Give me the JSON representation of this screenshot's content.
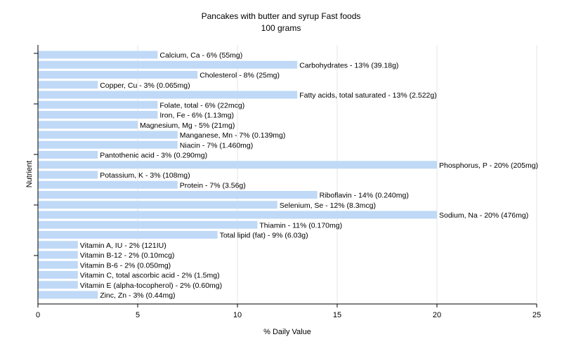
{
  "chart_data": {
    "type": "bar",
    "orientation": "horizontal",
    "title": "Pancakes with butter and syrup Fast foods",
    "subtitle": "100 grams",
    "xlabel": "% Daily Value",
    "ylabel": "Nutrient",
    "xlim": [
      0,
      25
    ],
    "xticks": [
      "0",
      "5",
      "10",
      "15",
      "20",
      "25"
    ],
    "grid": true,
    "bar_color": "#bfd9f7",
    "categories": [
      "Calcium, Ca",
      "Carbohydrates",
      "Cholesterol",
      "Copper, Cu",
      "Fatty acids, total saturated",
      "Folate, total",
      "Iron, Fe",
      "Magnesium, Mg",
      "Manganese, Mn",
      "Niacin",
      "Pantothenic acid",
      "Phosphorus, P",
      "Potassium, K",
      "Protein",
      "Riboflavin",
      "Selenium, Se",
      "Sodium, Na",
      "Thiamin",
      "Total lipid (fat)",
      "Vitamin A, IU",
      "Vitamin B-12",
      "Vitamin B-6",
      "Vitamin C, total ascorbic acid",
      "Vitamin E (alpha-tocopherol)",
      "Zinc, Zn"
    ],
    "values": [
      6,
      13,
      8,
      3,
      13,
      6,
      6,
      5,
      7,
      7,
      3,
      20,
      3,
      7,
      14,
      12,
      20,
      11,
      9,
      2,
      2,
      2,
      2,
      2,
      3
    ],
    "labels": [
      "Calcium, Ca - 6% (55mg)",
      "Carbohydrates - 13% (39.18g)",
      "Cholesterol - 8% (25mg)",
      "Copper, Cu - 3% (0.065mg)",
      "Fatty acids, total saturated - 13% (2.522g)",
      "Folate, total - 6% (22mcg)",
      "Iron, Fe - 6% (1.13mg)",
      "Magnesium, Mg - 5% (21mg)",
      "Manganese, Mn - 7% (0.139mg)",
      "Niacin - 7% (1.460mg)",
      "Pantothenic acid - 3% (0.290mg)",
      "Phosphorus, P - 20% (205mg)",
      "Potassium, K - 3% (108mg)",
      "Protein - 7% (3.56g)",
      "Riboflavin - 14% (0.240mg)",
      "Selenium, Se - 12% (8.3mcg)",
      "Sodium, Na - 20% (476mg)",
      "Thiamin - 11% (0.170mg)",
      "Total lipid (fat) - 9% (6.03g)",
      "Vitamin A, IU - 2% (121IU)",
      "Vitamin B-12 - 2% (0.10mcg)",
      "Vitamin B-6 - 2% (0.050mg)",
      "Vitamin C, total ascorbic acid - 2% (1.5mg)",
      "Vitamin E (alpha-tocopherol) - 2% (0.60mg)",
      "Zinc, Zn - 3% (0.44mg)"
    ]
  }
}
